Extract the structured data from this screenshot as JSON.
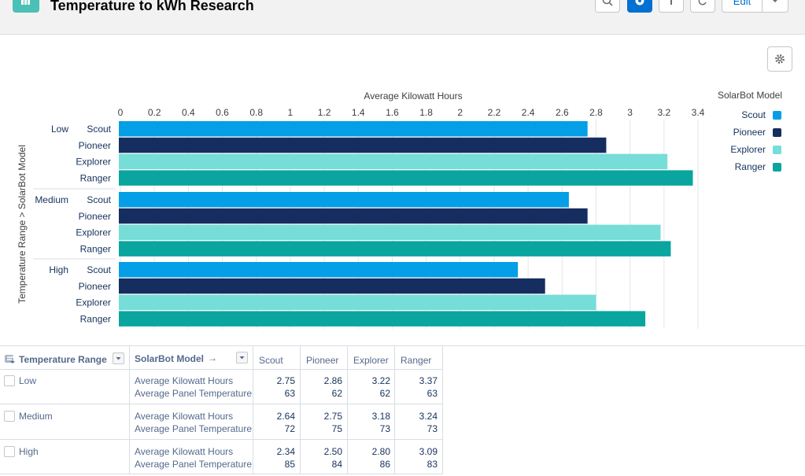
{
  "header": {
    "title": "Temperature to kWh Research",
    "edit_label": "Edit"
  },
  "colors": {
    "scout": "#049fe6",
    "pioneer": "#162e5f",
    "explorer": "#76ddd8",
    "ranger": "#0ba59f"
  },
  "chart_data": {
    "type": "bar",
    "orientation": "horizontal",
    "title": "Average Kilowatt Hours",
    "xlabel": "Average Kilowatt Hours",
    "ylabel": "Temperature Range > SolarBot Model",
    "xlim": [
      0,
      3.4
    ],
    "xticks": [
      "0",
      "0.2",
      "0.4",
      "0.6",
      "0.8",
      "1",
      "1.2",
      "1.4",
      "1.6",
      "1.8",
      "2",
      "2.2",
      "2.4",
      "2.6",
      "2.8",
      "3",
      "3.2",
      "3.4"
    ],
    "grid": true,
    "legend": {
      "title": "SolarBot Model",
      "position": "top-right",
      "entries": [
        "Scout",
        "Pioneer",
        "Explorer",
        "Ranger"
      ]
    },
    "groups": [
      "Low",
      "Medium",
      "High"
    ],
    "series": [
      {
        "name": "Scout",
        "values": [
          2.75,
          2.64,
          2.34
        ]
      },
      {
        "name": "Pioneer",
        "values": [
          2.86,
          2.75,
          2.5
        ]
      },
      {
        "name": "Explorer",
        "values": [
          3.22,
          3.18,
          2.8
        ]
      },
      {
        "name": "Ranger",
        "values": [
          3.37,
          3.24,
          3.09
        ]
      }
    ]
  },
  "table": {
    "group_header": "Temperature Range",
    "model_header": "SolarBot Model",
    "model_header_arrow": "→",
    "columns": [
      "Scout",
      "Pioneer",
      "Explorer",
      "Ranger"
    ],
    "metrics": [
      "Average Kilowatt Hours",
      "Average Panel Temperature"
    ],
    "rows": [
      {
        "label": "Low",
        "kwh": [
          "2.75",
          "2.86",
          "3.22",
          "3.37"
        ],
        "temp": [
          "63",
          "62",
          "62",
          "63"
        ]
      },
      {
        "label": "Medium",
        "kwh": [
          "2.64",
          "2.75",
          "3.18",
          "3.24"
        ],
        "temp": [
          "72",
          "75",
          "73",
          "73"
        ]
      },
      {
        "label": "High",
        "kwh": [
          "2.34",
          "2.50",
          "2.80",
          "3.09"
        ],
        "temp": [
          "85",
          "84",
          "86",
          "83"
        ]
      }
    ]
  }
}
